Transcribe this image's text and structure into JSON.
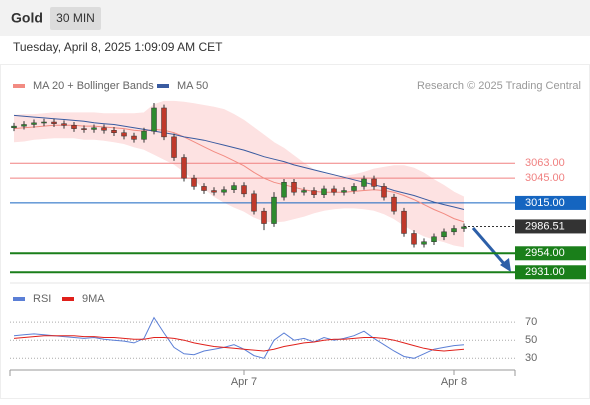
{
  "chart_data": [
    {
      "type": "candlestick",
      "title": "Gold",
      "interval": "30 MIN",
      "subtitle": "Tuesday, April 8, 2025 1:09:09 AM CET",
      "source": "Research © 2025 Trading Central",
      "ylim": [
        2918,
        3176
      ],
      "up_color": "#2e8b2e",
      "down_color": "#c0392b",
      "open": [
        3106,
        3108,
        3110,
        3112,
        3113,
        3111,
        3109,
        3105,
        3104,
        3106,
        3103,
        3100,
        3096,
        3092,
        3102,
        3130,
        3095,
        3070,
        3045,
        3035,
        3030,
        3028,
        3031,
        3036,
        3026,
        3005,
        2990,
        3022,
        3040,
        3028,
        3030,
        3025,
        3032,
        3028,
        3030,
        3035,
        3044,
        3035,
        3022,
        3005,
        2978,
        2965,
        2968,
        2974,
        2980,
        2984
      ],
      "high": [
        3112,
        3114,
        3116,
        3117,
        3117,
        3115,
        3113,
        3109,
        3110,
        3110,
        3107,
        3104,
        3100,
        3106,
        3136,
        3134,
        3099,
        3074,
        3049,
        3039,
        3034,
        3035,
        3040,
        3040,
        3030,
        3009,
        3028,
        3044,
        3044,
        3034,
        3034,
        3036,
        3036,
        3034,
        3039,
        3048,
        3048,
        3039,
        3026,
        3009,
        2982,
        2972,
        2978,
        2984,
        2988,
        2990
      ],
      "low": [
        3102,
        3104,
        3106,
        3108,
        3107,
        3105,
        3101,
        3100,
        3100,
        3099,
        3096,
        3092,
        3088,
        3088,
        3098,
        3091,
        3066,
        3041,
        3031,
        3026,
        3024,
        3024,
        3027,
        3022,
        3001,
        2982,
        2986,
        3018,
        3024,
        3024,
        3021,
        3021,
        3024,
        3024,
        3026,
        3031,
        3031,
        3018,
        3001,
        2974,
        2961,
        2961,
        2964,
        2970,
        2976,
        2980
      ],
      "close": [
        3108,
        3110,
        3112,
        3113,
        3111,
        3109,
        3105,
        3104,
        3106,
        3103,
        3100,
        3096,
        3092,
        3102,
        3130,
        3095,
        3070,
        3045,
        3035,
        3030,
        3028,
        3031,
        3036,
        3026,
        3005,
        2990,
        3022,
        3040,
        3028,
        3030,
        3025,
        3032,
        3028,
        3030,
        3035,
        3044,
        3035,
        3022,
        3005,
        2978,
        2965,
        2968,
        2974,
        2980,
        2984,
        2986
      ],
      "series": [
        {
          "name": "MA 20 + Bollinger Bands",
          "color": "#f28b82",
          "band_color": "#fde2e2",
          "values": [
            3105,
            3106,
            3107,
            3108,
            3109,
            3109,
            3109,
            3108,
            3108,
            3107,
            3106,
            3105,
            3103,
            3102,
            3104,
            3103,
            3100,
            3095,
            3089,
            3083,
            3077,
            3072,
            3066,
            3060,
            3052,
            3045,
            3040,
            3037,
            3034,
            3031,
            3029,
            3028,
            3028,
            3028,
            3029,
            3030,
            3031,
            3030,
            3028,
            3024,
            3019,
            3013,
            3007,
            3002,
            2996,
            2992
          ],
          "upper": [
            3121,
            3122,
            3122,
            3123,
            3124,
            3124,
            3124,
            3124,
            3124,
            3123,
            3123,
            3123,
            3123,
            3124,
            3134,
            3138,
            3138,
            3137,
            3135,
            3133,
            3131,
            3128,
            3122,
            3115,
            3106,
            3097,
            3088,
            3081,
            3072,
            3063,
            3055,
            3050,
            3048,
            3047,
            3049,
            3052,
            3056,
            3058,
            3060,
            3060,
            3057,
            3051,
            3043,
            3036,
            3028,
            3022
          ],
          "lower": [
            3089,
            3090,
            3092,
            3093,
            3094,
            3094,
            3094,
            3092,
            3092,
            3091,
            3089,
            3087,
            3083,
            3080,
            3074,
            3068,
            3062,
            3053,
            3043,
            3033,
            3023,
            3016,
            3010,
            3005,
            2998,
            2993,
            2992,
            2993,
            2996,
            2999,
            3003,
            3006,
            3008,
            3009,
            3009,
            3008,
            3006,
            3002,
            2996,
            2988,
            2981,
            2975,
            2971,
            2968,
            2964,
            2962
          ]
        },
        {
          "name": "MA 50",
          "color": "#3a5ba0",
          "values": [
            3121,
            3120,
            3119,
            3118,
            3117,
            3116,
            3115,
            3114,
            3112,
            3111,
            3110,
            3108,
            3106,
            3104,
            3102,
            3100,
            3098,
            3095,
            3093,
            3091,
            3088,
            3085,
            3082,
            3079,
            3075,
            3071,
            3068,
            3065,
            3061,
            3058,
            3055,
            3052,
            3049,
            3046,
            3043,
            3040,
            3037,
            3034,
            3030,
            3027,
            3024,
            3020,
            3016,
            3013,
            3010,
            3007
          ]
        }
      ],
      "levels": [
        {
          "value": 3063,
          "label": "3063.00",
          "color": "#f08080",
          "style": "plain"
        },
        {
          "value": 3045,
          "label": "3045.00",
          "color": "#f08080",
          "style": "plain"
        },
        {
          "value": 3015,
          "label": "3015.00",
          "color": "#1565c0",
          "style": "box"
        },
        {
          "value": 2986.51,
          "label": "2986.51",
          "color": "#333333",
          "style": "dotted"
        },
        {
          "value": 2954,
          "label": "2954.00",
          "color": "#1a7f1a",
          "style": "box"
        },
        {
          "value": 2931,
          "label": "2931.00",
          "color": "#1a7f1a",
          "style": "box"
        }
      ]
    },
    {
      "type": "line",
      "ylim": [
        17,
        89
      ],
      "yticks": [
        30,
        50,
        70
      ],
      "grid": true,
      "categories": [
        null,
        null,
        null,
        null,
        null,
        null,
        null,
        null,
        null,
        null,
        null,
        null,
        null,
        null,
        null,
        null,
        null,
        null,
        null,
        null,
        null,
        null,
        null,
        "Apr 7",
        null,
        null,
        null,
        null,
        null,
        null,
        null,
        null,
        null,
        null,
        null,
        null,
        null,
        null,
        null,
        null,
        null,
        null,
        null,
        null,
        "Apr 8",
        null
      ],
      "series": [
        {
          "name": "RSI",
          "color": "#5b7fd6",
          "values": [
            55,
            56,
            57,
            56,
            55,
            54,
            53,
            52,
            53,
            51,
            50,
            49,
            47,
            52,
            75,
            58,
            42,
            35,
            34,
            38,
            40,
            42,
            45,
            40,
            33,
            30,
            50,
            58,
            50,
            52,
            48,
            53,
            50,
            52,
            55,
            60,
            52,
            45,
            38,
            32,
            30,
            35,
            40,
            42,
            44,
            45
          ]
        },
        {
          "name": "9MA",
          "color": "#e0201b",
          "values": [
            52,
            53,
            54,
            55,
            55,
            55,
            55,
            54,
            54,
            53,
            53,
            52,
            51,
            51,
            53,
            53,
            52,
            50,
            47,
            45,
            43,
            42,
            41,
            40,
            39,
            38,
            40,
            43,
            45,
            47,
            48,
            50,
            51,
            51,
            52,
            53,
            53,
            52,
            50,
            47,
            44,
            41,
            39,
            38,
            39,
            40
          ]
        }
      ]
    }
  ]
}
